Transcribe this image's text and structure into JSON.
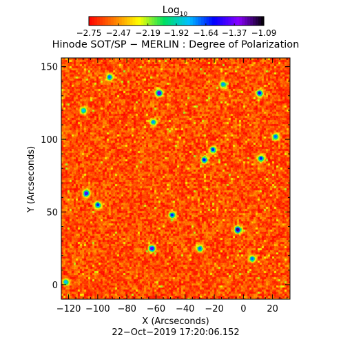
{
  "chart_data": {
    "type": "heatmap",
    "title": "Hinode SOT/SP − MERLIN : Degree of Polarization",
    "xlabel": "X (Arcseconds)",
    "ylabel": "Y (Arcseconds)",
    "xlim": [
      -125,
      32
    ],
    "ylim": [
      -10,
      156
    ],
    "x_ticks": [
      -120,
      -100,
      -80,
      -60,
      -40,
      -20,
      0,
      20
    ],
    "x_tick_labels": [
      "−120",
      "−100",
      "−80",
      "−60",
      "−40",
      "−20",
      "0",
      "20"
    ],
    "y_ticks": [
      0,
      50,
      100,
      150
    ],
    "y_tick_labels": [
      "0",
      "50",
      "100",
      "150"
    ],
    "colorbar": {
      "title_base": "Log",
      "title_subscript": "10",
      "scale": "log10",
      "range": [
        -2.75,
        -1.09
      ],
      "ticks": [
        -2.75,
        -2.47,
        -2.19,
        -1.92,
        -1.64,
        -1.37,
        -1.09
      ],
      "tick_labels": [
        "−2.75",
        "−2.47",
        "−2.19",
        "−1.92",
        "−1.64",
        "−1.37",
        "−1.09"
      ],
      "colormap": [
        "#ff0000",
        "#ff7a00",
        "#ffff00",
        "#00e060",
        "#00c0ff",
        "#0000ff",
        "#8a00ff",
        "#000000"
      ]
    },
    "dominant_level": -2.6,
    "features": [
      {
        "x": -58,
        "y": 132,
        "level": -1.3
      },
      {
        "x": 11,
        "y": 132,
        "level": -1.5
      },
      {
        "x": -27,
        "y": 86,
        "level": -1.55
      },
      {
        "x": -21,
        "y": 93,
        "level": -1.6
      },
      {
        "x": 12,
        "y": 87,
        "level": -1.6
      },
      {
        "x": -108,
        "y": 63,
        "level": -1.4
      },
      {
        "x": -100,
        "y": 55,
        "level": -1.6
      },
      {
        "x": -49,
        "y": 48,
        "level": -1.6
      },
      {
        "x": -4,
        "y": 38,
        "level": -1.2
      },
      {
        "x": -63,
        "y": 25,
        "level": -1.4
      },
      {
        "x": -30,
        "y": 25,
        "level": -1.7
      },
      {
        "x": 6,
        "y": 18,
        "level": -1.7
      },
      {
        "x": -92,
        "y": 143,
        "level": -1.7
      },
      {
        "x": -14,
        "y": 138,
        "level": -1.75
      },
      {
        "x": -62,
        "y": 112,
        "level": -1.75
      },
      {
        "x": -110,
        "y": 120,
        "level": -1.8
      },
      {
        "x": 22,
        "y": 102,
        "level": -1.7
      },
      {
        "x": -122,
        "y": 2,
        "level": -1.8
      }
    ]
  },
  "timestamp": "22−Oct−2019 17:20:06.152"
}
